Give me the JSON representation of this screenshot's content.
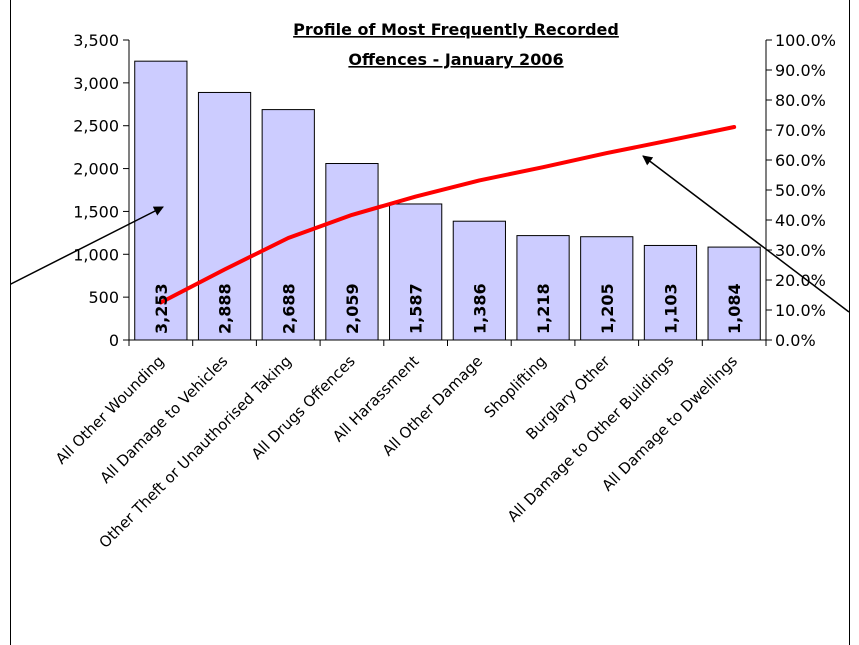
{
  "chart_data": {
    "type": "bar",
    "title_lines": [
      "Profile of Most Frequently Recorded ",
      "Offences - January 2006"
    ],
    "categories": [
      "All Other Wounding",
      "All Damage to Vehicles",
      "Other Theft or Unauthorised Taking",
      "All Drugs Offences",
      "All Harassment",
      "All Other Damage",
      "Shoplifting",
      "Burglary Other",
      "All Damage to Other Buildings",
      "All Damage to Dwellings"
    ],
    "values": [
      3253,
      2888,
      2688,
      2059,
      1587,
      1386,
      1218,
      1205,
      1103,
      1084
    ],
    "value_labels": [
      "3,253",
      "2,888",
      "2,688",
      "2,059",
      "1,587",
      "1,386",
      "1,218",
      "1,205",
      "1,103",
      "1,084"
    ],
    "cumulative_percent": [
      12.5,
      23.5,
      34.0,
      41.7,
      47.8,
      53.2,
      57.6,
      62.3,
      66.6,
      71.0
    ],
    "ylim": [
      0,
      3500
    ],
    "y_ticks": [
      "0",
      "500",
      "1,000",
      "1,500",
      "2,000",
      "2,500",
      "3,000",
      "3,500"
    ],
    "y2lim": [
      0,
      100
    ],
    "y2_ticks": [
      "0.0%",
      "10.0%",
      "20.0%",
      "30.0%",
      "40.0%",
      "50.0%",
      "60.0%",
      "70.0%",
      "80.0%",
      "90.0%",
      "100.0%"
    ],
    "grid": false,
    "bar_color": "#ccccff",
    "bar_border": "#000000",
    "line_color": "#ff0000"
  }
}
